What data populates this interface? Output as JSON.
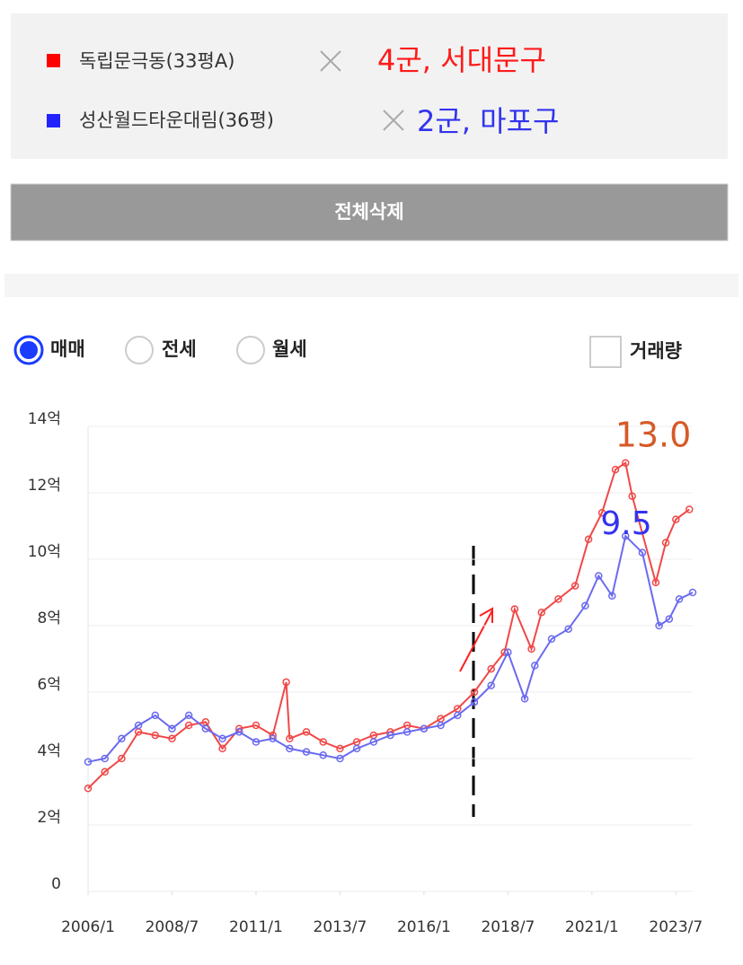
{
  "compare_box": {
    "items": [
      {
        "name": "독립문극동(33평A)",
        "note": "4군, 서대문구"
      },
      {
        "name": "성산월드타운대림(36평)",
        "note": "2군, 마포구"
      }
    ]
  },
  "delete_button": "전체삭제",
  "options": {
    "radios": [
      "매매",
      "전세",
      "월세"
    ],
    "checkbox": "거래량"
  },
  "chart_data": {
    "type": "line",
    "xlim": [
      2006,
      2024
    ],
    "xticks": [
      {
        "value": 2006,
        "label": "2006/1"
      },
      {
        "value": 2008.5,
        "label": "2008/7"
      },
      {
        "value": 2011,
        "label": "2011/1"
      },
      {
        "value": 2013.5,
        "label": "2013/7"
      },
      {
        "value": 2016,
        "label": "2016/1"
      },
      {
        "value": 2018.5,
        "label": "2018/7"
      },
      {
        "value": 2021,
        "label": "2021/1"
      },
      {
        "value": 2023.5,
        "label": "2023/7"
      }
    ],
    "ylim": [
      0,
      14
    ],
    "yticks": [
      0,
      {
        "value": 2,
        "label": "2억"
      },
      {
        "value": 4,
        "label": "4억"
      },
      {
        "value": 6,
        "label": "6억"
      },
      {
        "value": 8,
        "label": "8억"
      },
      {
        "value": 10,
        "label": "10억"
      },
      {
        "value": 12,
        "label": "12억"
      },
      {
        "value": 14,
        "label": "14억"
      }
    ],
    "grid": true,
    "annotations": [
      "13.0",
      "9.5"
    ],
    "series": [
      {
        "name": "독립문극동(33평A)",
        "color": "#f04848",
        "x": [
          2006.0,
          2006.5,
          2007.0,
          2007.5,
          2008.0,
          2008.5,
          2009.0,
          2009.5,
          2010.0,
          2010.5,
          2011.0,
          2011.5,
          2011.9,
          2012.0,
          2012.5,
          2013.0,
          2013.5,
          2014.0,
          2014.5,
          2015.0,
          2015.5,
          2016.0,
          2016.5,
          2017.0,
          2017.5,
          2018.0,
          2018.4,
          2018.7,
          2019.2,
          2019.5,
          2020.0,
          2020.5,
          2020.9,
          2021.3,
          2021.7,
          2022.0,
          2022.2,
          2022.9,
          2023.2,
          2023.5,
          2023.9
        ],
        "values": [
          3.1,
          3.6,
          4.0,
          4.8,
          4.7,
          4.6,
          5.0,
          5.1,
          4.3,
          4.9,
          5.0,
          4.7,
          6.3,
          4.6,
          4.8,
          4.5,
          4.3,
          4.5,
          4.7,
          4.8,
          5.0,
          4.9,
          5.2,
          5.5,
          6.0,
          6.7,
          7.2,
          8.5,
          7.3,
          8.4,
          8.8,
          9.2,
          10.6,
          11.4,
          12.7,
          12.9,
          11.9,
          9.3,
          10.5,
          11.2,
          11.5
        ]
      },
      {
        "name": "성산월드타운대림(36평)",
        "color": "#6a6af0",
        "x": [
          2006.0,
          2006.5,
          2007.0,
          2007.5,
          2008.0,
          2008.5,
          2009.0,
          2009.5,
          2010.0,
          2010.5,
          2011.0,
          2011.5,
          2012.0,
          2012.5,
          2013.0,
          2013.5,
          2014.0,
          2014.5,
          2015.0,
          2015.5,
          2016.0,
          2016.5,
          2017.0,
          2017.5,
          2018.0,
          2018.5,
          2019.0,
          2019.3,
          2019.8,
          2020.3,
          2020.8,
          2021.2,
          2021.6,
          2022.0,
          2022.5,
          2023.0,
          2023.3,
          2023.6,
          2024.0
        ],
        "values": [
          3.9,
          4.0,
          4.6,
          5.0,
          5.3,
          4.9,
          5.3,
          4.9,
          4.6,
          4.8,
          4.5,
          4.6,
          4.3,
          4.2,
          4.1,
          4.0,
          4.3,
          4.5,
          4.7,
          4.8,
          4.9,
          5.0,
          5.3,
          5.7,
          6.2,
          7.2,
          5.8,
          6.8,
          7.6,
          7.9,
          8.6,
          9.5,
          8.9,
          10.7,
          10.2,
          8.0,
          8.2,
          8.8,
          9.0
        ]
      }
    ]
  }
}
